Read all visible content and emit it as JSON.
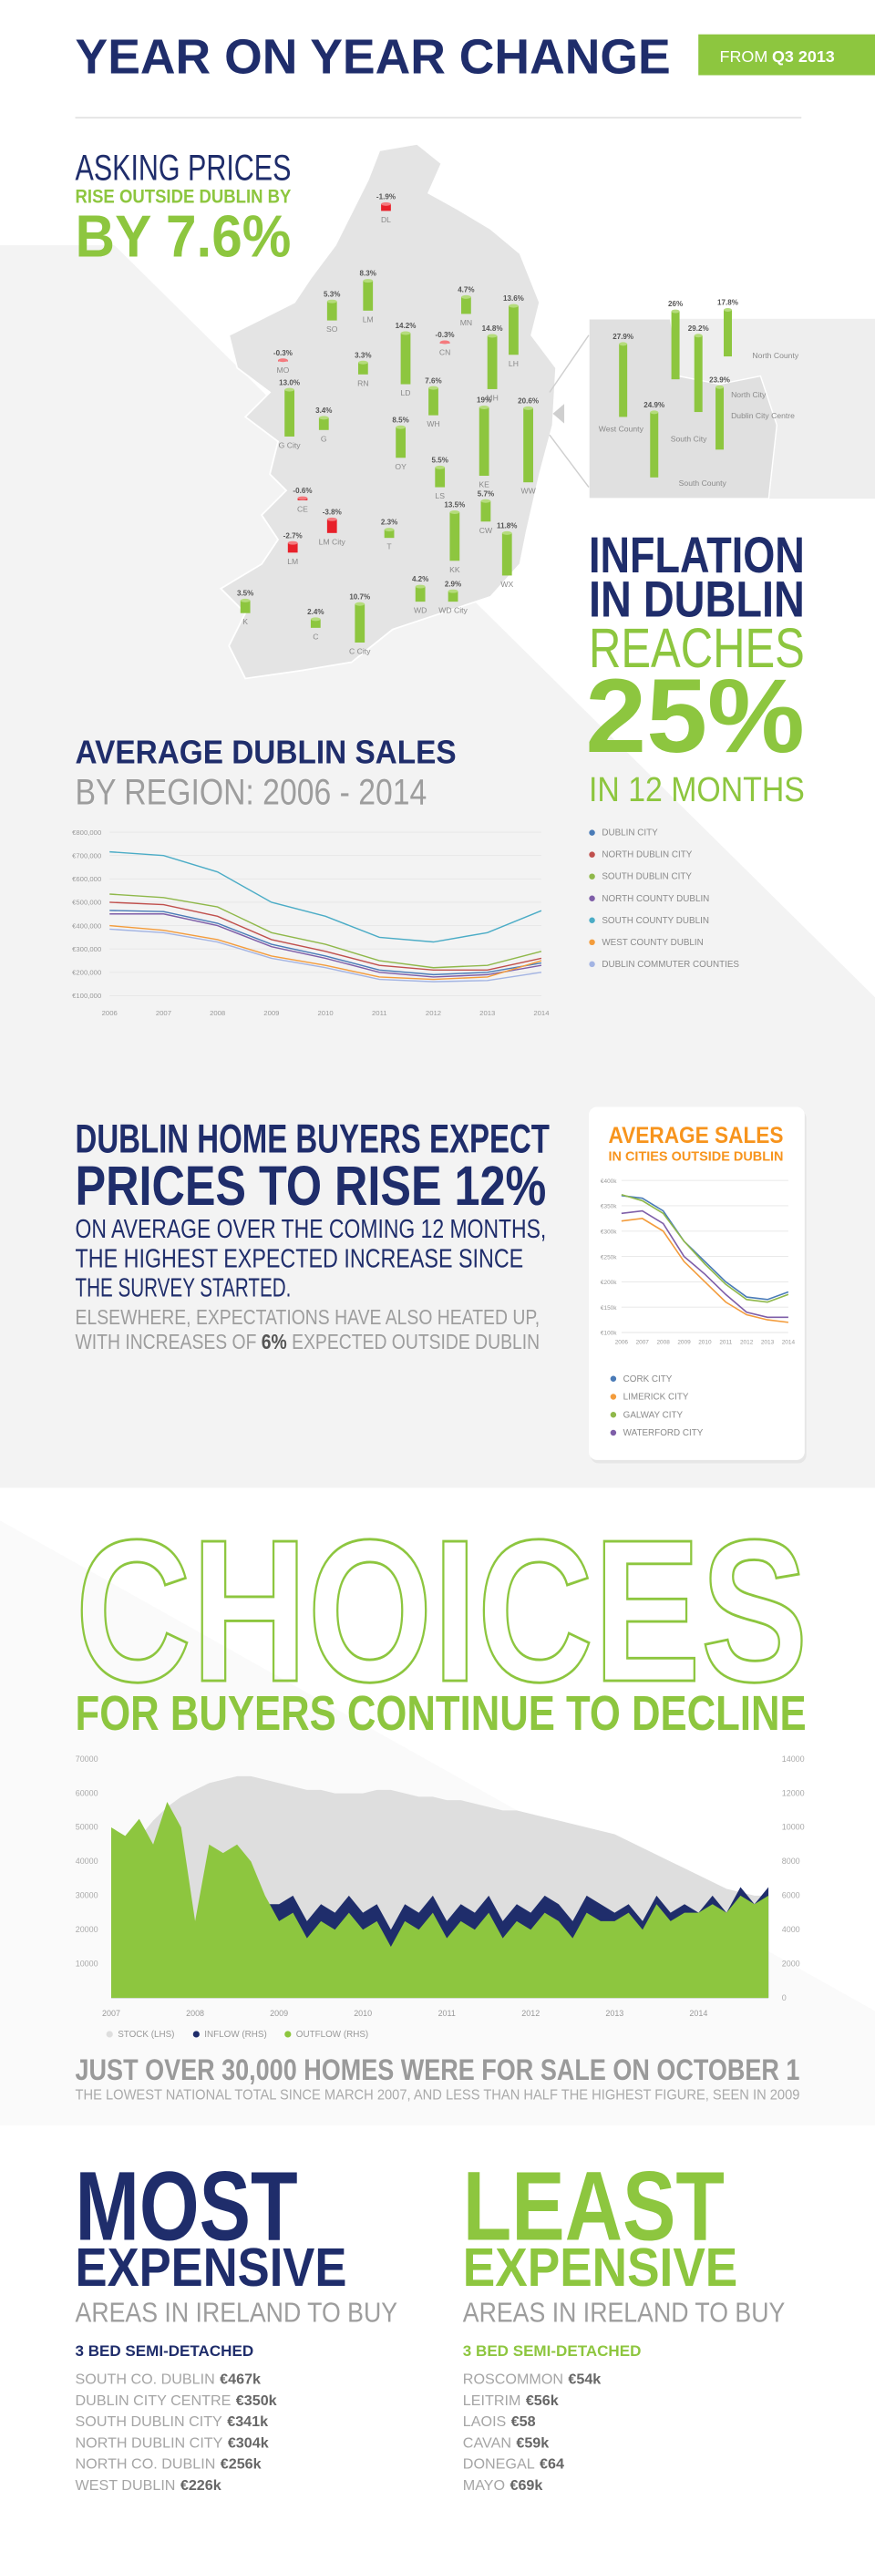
{
  "header": {
    "title": "YEAR ON YEAR CHANGE",
    "badge_from": "FROM",
    "badge_period": "Q3 2013"
  },
  "asking": {
    "line1": "ASKING PRICES",
    "line2": "RISE OUTSIDE DUBLIN BY",
    "line3": "BY 7.6%"
  },
  "inflation": {
    "line1": "INFLATION",
    "line2": "IN DUBLIN",
    "line3": "REACHES",
    "line4": "25%",
    "line5": "IN 12 MONTHS"
  },
  "buyers": {
    "line1": "DUBLIN HOME BUYERS EXPECT",
    "line2": "PRICES TO RISE 12%",
    "intro_lines": [
      "ON AVERAGE OVER THE COMING 12 MONTHS,",
      "THE HIGHEST EXPECTED INCREASE SINCE",
      "THE SURVEY STARTED."
    ],
    "elsewhere_line1": "ELSEWHERE, EXPECTATIONS HAVE ALSO HEATED UP,",
    "elsewhere_before": "WITH INCREASES OF ",
    "elsewhere_bold": "6%",
    "elsewhere_after": " EXPECTED OUTSIDE DUBLIN"
  },
  "choices": {
    "title": "CHOICES",
    "subtitle": "FOR BUYERS CONTINUE TO DECLINE"
  },
  "homes": {
    "headline": "JUST OVER 30,000 HOMES WERE FOR SALE ON OCTOBER 1",
    "note": "THE LOWEST NATIONAL TOTAL SINCE MARCH 2007, AND LESS THAN HALF THE HIGHEST FIGURE, SEEN IN 2009"
  },
  "most": {
    "line1": "MOST",
    "line2": "EXPENSIVE",
    "line3": "AREAS IN IRELAND TO BUY",
    "subhead": "3 BED SEMI-DETACHED",
    "rows": [
      [
        "SOUTH CO. DUBLIN",
        "€467k"
      ],
      [
        "DUBLIN CITY CENTRE",
        "€350k"
      ],
      [
        "SOUTH DUBLIN CITY",
        "€341k"
      ],
      [
        "NORTH DUBLIN CITY",
        "€304k"
      ],
      [
        "NORTH CO. DUBLIN",
        "€256k"
      ],
      [
        "WEST DUBLIN",
        "€226k"
      ]
    ]
  },
  "least": {
    "line1": "LEAST",
    "line2": "EXPENSIVE",
    "line3": "AREAS IN IRELAND TO BUY",
    "subhead": "3 BED SEMI-DETACHED",
    "rows": [
      [
        "ROSCOMMON",
        "€54k"
      ],
      [
        "LEITRIM",
        "€56k"
      ],
      [
        "LAOIS",
        "€58"
      ],
      [
        "CAVAN",
        "€59k"
      ],
      [
        "DONEGAL",
        "€64"
      ],
      [
        "MAYO",
        "€69k"
      ]
    ]
  },
  "chart_data": [
    {
      "type": "map-bar",
      "color": "#8dc63f",
      "negative_color": "#e8202a",
      "categories": [
        "DL",
        "LM",
        "SO",
        "MN",
        "CN",
        "LH",
        "MO",
        "RN",
        "LD",
        "MH",
        "G City",
        "G",
        "WH",
        "OY",
        "KE",
        "WW",
        "LS",
        "CE",
        "CW",
        "LM City",
        "LM",
        "T",
        "KK",
        "WX",
        "WD",
        "WD City",
        "K",
        "C",
        "C City"
      ],
      "values": [
        -1.9,
        8.3,
        5.3,
        4.7,
        -0.3,
        13.6,
        -0.3,
        3.3,
        14.2,
        14.8,
        13.0,
        3.4,
        7.6,
        8.5,
        19,
        20.6,
        5.5,
        -0.6,
        5.7,
        -3.8,
        -2.7,
        2.3,
        13.5,
        11.8,
        4.2,
        2.9,
        3.5,
        2.4,
        10.7
      ],
      "value_labels": [
        "-1.9%",
        "8.3%",
        "5.3%",
        "4.7%",
        "-0.3%",
        "13.6%",
        "-0.3%",
        "3.3%",
        "14.2%",
        "14.8%",
        "13.0%",
        "3.4%",
        "7.6%",
        "8.5%",
        "19%",
        "20.6%",
        "5.5%",
        "-0.6%",
        "5.7%",
        "-3.8%",
        "-2.7%",
        "2.3%",
        "13.5%",
        "11.8%",
        "4.2%",
        "2.9%",
        "3.5%",
        "2.4%",
        "10.7%"
      ]
    },
    {
      "type": "map-bar",
      "color": "#8dc63f",
      "negative_color": "#e8202a",
      "categories": [
        "West County",
        "North City",
        "Dublin City Centre",
        "North County",
        "South City",
        "South County"
      ],
      "values": [
        27.9,
        26,
        29.2,
        17.8,
        24.9,
        23.9
      ],
      "value_labels": [
        "27.9%",
        "26%",
        "29.2%",
        "17.8%",
        "24.9%",
        "23.9%"
      ]
    },
    {
      "type": "line",
      "title": "AVERAGE DUBLIN SALES",
      "subtitle": "BY REGION: 2006 - 2014",
      "grid": true,
      "categories": [
        "2006",
        "2007",
        "2008",
        "2009",
        "2010",
        "2011",
        "2012",
        "2013",
        "2014"
      ],
      "ylim": [
        100000,
        800000
      ],
      "yticks": [
        {
          "value": 100000,
          "label": "€100,000"
        },
        {
          "value": 200000,
          "label": "€200,000"
        },
        {
          "value": 300000,
          "label": "€300,000"
        },
        {
          "value": 400000,
          "label": "€400,000"
        },
        {
          "value": 500000,
          "label": "€500,000"
        },
        {
          "value": 600000,
          "label": "€600,000"
        },
        {
          "value": 700000,
          "label": "€700,000"
        },
        {
          "value": 800000,
          "label": "€800,000"
        }
      ],
      "series": [
        {
          "name": "DUBLIN CITY",
          "color": "#4a7bb7",
          "values": [
            465000,
            460000,
            410000,
            320000,
            270000,
            210000,
            190000,
            200000,
            240000
          ]
        },
        {
          "name": "NORTH DUBLIN CITY",
          "color": "#c0504d",
          "values": [
            500000,
            490000,
            440000,
            340000,
            290000,
            230000,
            210000,
            210000,
            260000
          ]
        },
        {
          "name": "SOUTH DUBLIN CITY",
          "color": "#8fb84a",
          "values": [
            535000,
            520000,
            480000,
            370000,
            320000,
            250000,
            220000,
            230000,
            290000
          ]
        },
        {
          "name": "NORTH COUNTY DUBLIN",
          "color": "#7e5ea8",
          "values": [
            450000,
            450000,
            400000,
            310000,
            260000,
            200000,
            180000,
            190000,
            230000
          ]
        },
        {
          "name": "SOUTH COUNTY DUBLIN",
          "color": "#4bacc6",
          "values": [
            716000,
            700000,
            630000,
            500000,
            440000,
            350000,
            330000,
            370000,
            464000
          ]
        },
        {
          "name": "WEST COUNTY DUBLIN",
          "color": "#f39c3c",
          "values": [
            400000,
            380000,
            340000,
            270000,
            230000,
            180000,
            170000,
            180000,
            250000
          ]
        },
        {
          "name": "DUBLIN COMMUTER COUNTIES",
          "color": "#a3b4e3",
          "values": [
            385000,
            370000,
            330000,
            260000,
            220000,
            170000,
            160000,
            165000,
            200000
          ]
        }
      ]
    },
    {
      "type": "line",
      "title": "AVERAGE SALES",
      "subtitle": "IN CITIES OUTSIDE DUBLIN",
      "grid": true,
      "categories": [
        "2006",
        "2007",
        "2008",
        "2009",
        "2010",
        "2011",
        "2012",
        "2013",
        "2014"
      ],
      "ylim": [
        100000,
        400000
      ],
      "yticks": [
        {
          "value": 100000,
          "label": "€100k"
        },
        {
          "value": 150000,
          "label": "€150k"
        },
        {
          "value": 200000,
          "label": "€200k"
        },
        {
          "value": 250000,
          "label": "€250k"
        },
        {
          "value": 300000,
          "label": "€300k"
        },
        {
          "value": 350000,
          "label": "€350k"
        },
        {
          "value": 400000,
          "label": "€400k"
        }
      ],
      "series": [
        {
          "name": "CORK CITY",
          "color": "#4a7bb7",
          "values": [
            370000,
            365000,
            340000,
            280000,
            240000,
            200000,
            170000,
            165000,
            180000
          ]
        },
        {
          "name": "LIMERICK CITY",
          "color": "#f39c3c",
          "values": [
            320000,
            325000,
            300000,
            240000,
            200000,
            160000,
            135000,
            125000,
            120000
          ]
        },
        {
          "name": "GALWAY CITY",
          "color": "#8fb84a",
          "values": [
            372000,
            360000,
            335000,
            280000,
            235000,
            195000,
            165000,
            160000,
            175000
          ]
        },
        {
          "name": "WATERFORD CITY",
          "color": "#7e5ea8",
          "values": [
            335000,
            340000,
            315000,
            250000,
            215000,
            175000,
            140000,
            130000,
            130000
          ]
        }
      ]
    },
    {
      "type": "area",
      "grid": false,
      "categories": [
        "2007",
        null,
        null,
        null,
        null,
        null,
        "2008",
        null,
        null,
        null,
        null,
        null,
        "2009",
        null,
        null,
        null,
        null,
        null,
        "2010",
        null,
        null,
        null,
        null,
        null,
        "2011",
        null,
        null,
        null,
        null,
        null,
        "2012",
        null,
        null,
        null,
        null,
        null,
        "2013",
        null,
        null,
        null,
        null,
        null,
        "2014",
        null,
        null,
        null,
        null,
        null
      ],
      "ylim": [
        0,
        70000
      ],
      "yticks": [
        10000,
        20000,
        30000,
        40000,
        50000,
        60000,
        70000
      ],
      "y2lim": [
        0,
        14000
      ],
      "y2ticks": [
        0,
        2000,
        4000,
        6000,
        8000,
        10000,
        12000,
        14000
      ],
      "series": [
        {
          "name": "STOCK (LHS)",
          "color": "#dedede",
          "values": [
            38000,
            42000,
            47000,
            52000,
            56000,
            59000,
            61000,
            63000,
            64000,
            65000,
            65000,
            64000,
            63000,
            62000,
            61000,
            61000,
            60000,
            60000,
            60000,
            61000,
            61000,
            60000,
            59000,
            59000,
            58000,
            58000,
            57000,
            56000,
            55000,
            55000,
            54000,
            53000,
            52000,
            51000,
            50000,
            49000,
            48000,
            46000,
            44000,
            42000,
            40000,
            38000,
            36000,
            34000,
            32000,
            31000,
            30000,
            30000
          ]
        },
        {
          "name": "INFLOW (RHS)",
          "color": "#1f2d6b",
          "axis": "y2",
          "values": [
            9500,
            9000,
            10000,
            8500,
            11000,
            9500,
            4000,
            8500,
            8000,
            8500,
            7500,
            5500,
            5500,
            6000,
            4500,
            5500,
            5000,
            6000,
            5000,
            5500,
            4000,
            5500,
            5000,
            6000,
            4500,
            5500,
            5000,
            6000,
            4500,
            5500,
            5000,
            6000,
            5500,
            4500,
            6000,
            5500,
            5000,
            5500,
            4500,
            6000,
            5000,
            5500,
            5000,
            6000,
            5000,
            6500,
            5500,
            6500
          ]
        },
        {
          "name": "OUTFLOW (RHS)",
          "color": "#8dc63f",
          "axis": "y2",
          "values": [
            10000,
            9500,
            10500,
            9000,
            11500,
            10000,
            4500,
            9000,
            8500,
            9000,
            8000,
            6000,
            4500,
            5000,
            3500,
            4500,
            4000,
            5000,
            4000,
            4500,
            3000,
            4500,
            4000,
            5000,
            3500,
            4500,
            4000,
            5000,
            3500,
            4500,
            4000,
            5000,
            4500,
            3500,
            5000,
            4500,
            4500,
            5000,
            4000,
            5500,
            4500,
            5000,
            5000,
            5500,
            5000,
            6000,
            5500,
            6000
          ]
        }
      ]
    }
  ]
}
